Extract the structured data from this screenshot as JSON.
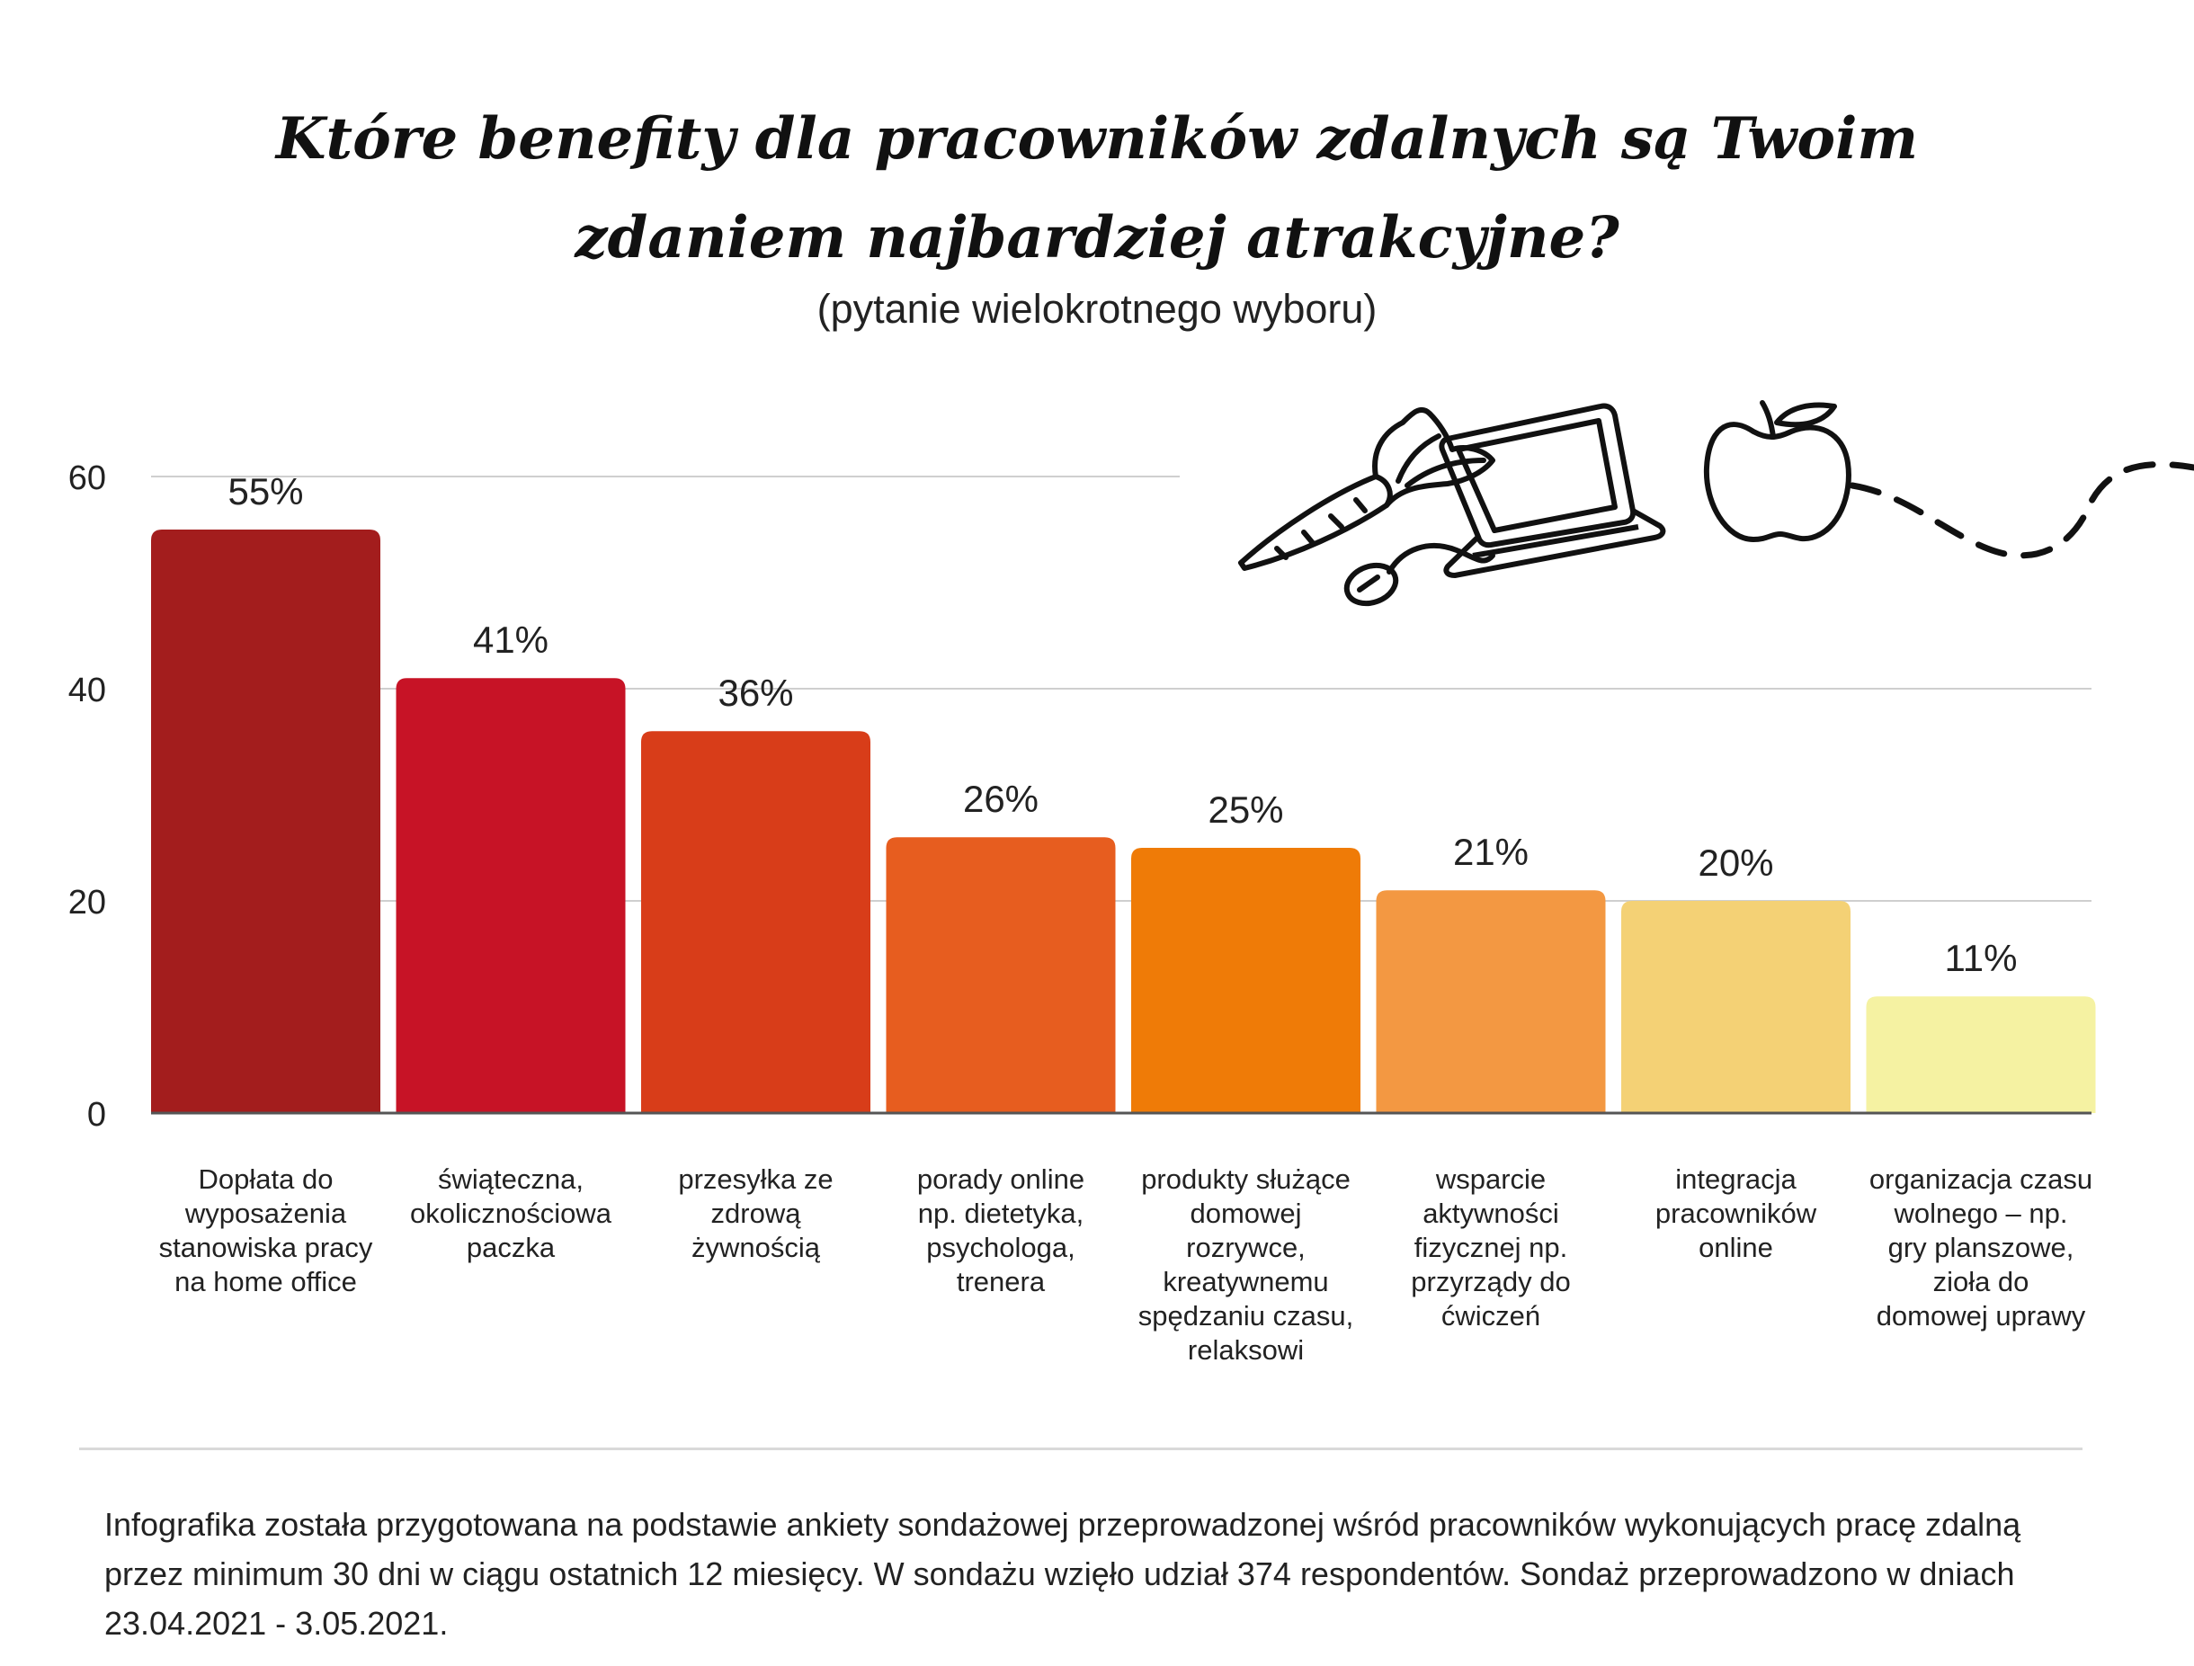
{
  "title_lines": [
    "Które benefity dla pracowników zdalnych są Twoim",
    "zdaniem najbardziej atrakcyjne?"
  ],
  "subtitle": "(pytanie wielokrotnego wyboru)",
  "chart_data": {
    "type": "bar",
    "title": "Które benefity dla pracowników zdalnych są Twoim zdaniem najbardziej atrakcyjne?",
    "subtitle": "(pytanie wielokrotnego wyboru)",
    "categories": [
      "Dopłata do wyposażenia stanowiska pracy na home office",
      "świąteczna, okolicznościowa paczka",
      "przesyłka ze zdrową żywnością",
      "porady online np. dietetyka, psychologa, trenera",
      "produkty służące domowej rozrywce, kreatywnemu spędzaniu czasu, relaksowi",
      "wsparcie aktywności fizycznej np. przyrządy do ćwiczeń",
      "integracja pracowników online",
      "organizacja czasu wolnego – np. gry planszowe, zioła do domowej uprawy"
    ],
    "category_lines": [
      [
        "Dopłata do",
        "wyposażenia",
        "stanowiska pracy",
        "na home office"
      ],
      [
        "świąteczna,",
        "okolicznościowa",
        "paczka"
      ],
      [
        "przesyłka ze",
        "zdrową",
        "żywnością"
      ],
      [
        "porady online",
        "np. dietetyka,",
        "psychologa,",
        "trenera"
      ],
      [
        "produkty służące",
        "domowej",
        "rozrywce,",
        "kreatywnemu",
        "spędzaniu czasu,",
        "relaksowi"
      ],
      [
        "wsparcie",
        "aktywności",
        "fizycznej np.",
        "przyrządy do",
        "ćwiczeń"
      ],
      [
        "integracja",
        "pracowników",
        "online"
      ],
      [
        "organizacja czasu",
        "wolnego – np.",
        "gry planszowe,",
        "zioła do",
        "domowej uprawy"
      ]
    ],
    "values": [
      55,
      41,
      36,
      26,
      25,
      21,
      20,
      11
    ],
    "value_labels": [
      "55%",
      "41%",
      "36%",
      "26%",
      "25%",
      "21%",
      "20%",
      "11%"
    ],
    "colors": [
      "#a31d1d",
      "#c71326",
      "#d83d19",
      "#e75d1f",
      "#ef7b07",
      "#f39842",
      "#f4d175",
      "#f5f2a2"
    ],
    "ylim": [
      0,
      60
    ],
    "yticks": [
      0,
      20,
      40,
      60
    ],
    "grid": true,
    "xlabel": "",
    "ylabel": ""
  },
  "footnote": "Infografika została przygotowana na podstawie ankiety sondażowej przeprowadzonej wśród pracowników wykonujących pracę zdalną przez minimum 30 dni w ciągu ostatnich 12 miesięcy. W sondażu wzięło udział 374 respondentów. Sondaż przeprowadzono w dniach 23.04.2021 - 3.05.2021.",
  "decoration_icons": [
    "carrot-icon",
    "laptop-icon",
    "mouse-icon",
    "apple-icon",
    "dashed-path"
  ]
}
